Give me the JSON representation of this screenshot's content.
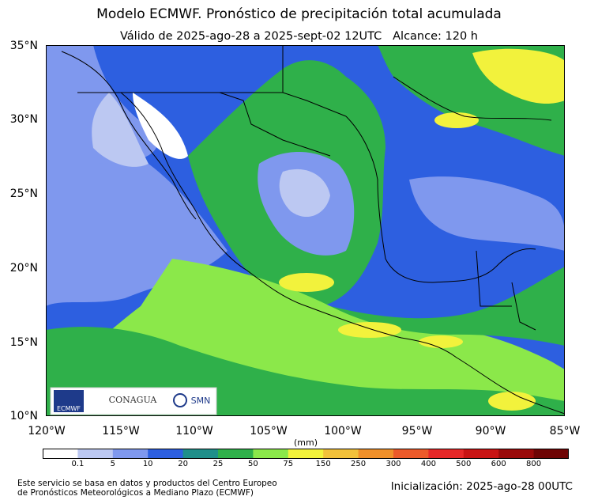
{
  "header": {
    "title": "Modelo ECMWF. Pronóstico de precipitación total acumulada",
    "subtitle": "Válido de 2025-ago-28 a 2025-sept-02 12UTC   Alcance: 120 h"
  },
  "map": {
    "region": "Mexico and surroundings",
    "lon_range": [
      -120,
      -85
    ],
    "lat_range": [
      10,
      35
    ],
    "lat_labels": [
      "35°N",
      "30°N",
      "25°N",
      "20°N",
      "15°N",
      "10°N"
    ],
    "lon_labels": [
      "120°W",
      "115°W",
      "110°W",
      "105°W",
      "100°W",
      "95°W",
      "90°W",
      "85°W"
    ],
    "logos": {
      "ecmwf": "ECMWF",
      "conagua": "CONAGUA",
      "smn": "SMN"
    }
  },
  "colorbar": {
    "unit_label": "(mm)",
    "labels": [
      "0.1",
      "5",
      "10",
      "20",
      "25",
      "50",
      "75",
      "150",
      "250",
      "300",
      "400",
      "500",
      "600",
      "800"
    ],
    "colors": [
      "#ffffff",
      "#bcc8f2",
      "#7f98ee",
      "#2d5fe0",
      "#1f8f8a",
      "#2fb04a",
      "#8be84a",
      "#f2f23c",
      "#f2c13a",
      "#f0902a",
      "#ec5a2a",
      "#e62828",
      "#c81414",
      "#9a0a0a",
      "#6e0505"
    ]
  },
  "footer": {
    "source_line1": "Este servicio se basa en datos y productos del Centro Europeo",
    "source_line2": "de Pronósticos Meteorológicos a Mediano Plazo (ECMWF)",
    "init": "Inicialización: 2025-ago-28 00UTC"
  }
}
